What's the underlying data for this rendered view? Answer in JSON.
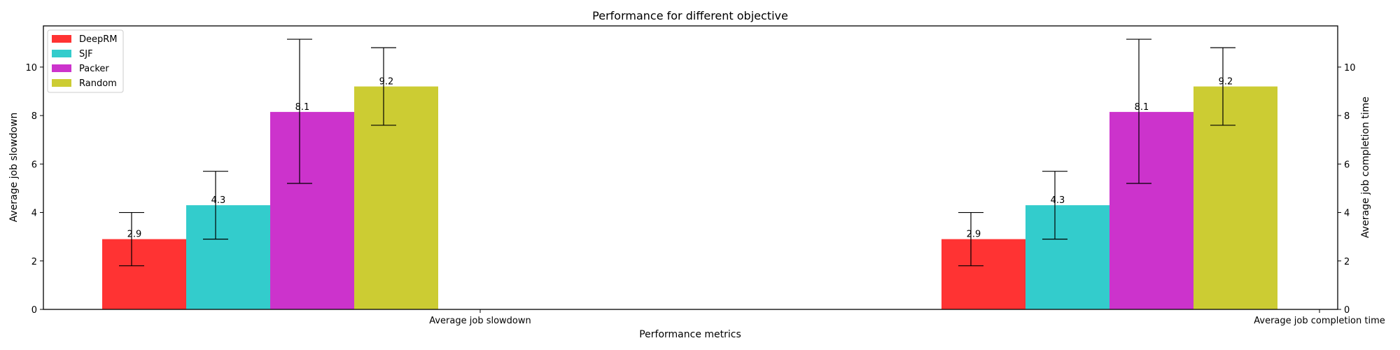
{
  "chart_data": {
    "type": "bar",
    "title": "Performance for different objective",
    "xlabel": "Performance metrics",
    "ylabel": "Average job slowdown",
    "ylabel_right": "Average job completion time",
    "ylim": [
      0,
      11.7
    ],
    "yticks": [
      0,
      2,
      4,
      6,
      8,
      10
    ],
    "legend_position": "top-left",
    "grid": false,
    "groups": [
      {
        "label": "Average job slowdown",
        "series": [
          {
            "name": "DeepRM",
            "value": 2.9,
            "label": "2.9",
            "err_low": 1.8,
            "err_high": 4.0,
            "color": "#ff3333"
          },
          {
            "name": "SJF",
            "value": 4.3,
            "label": "4.3",
            "err_low": 2.9,
            "err_high": 5.7,
            "color": "#33cccc"
          },
          {
            "name": "Packer",
            "value": 8.15,
            "label": "8.1",
            "err_low": 5.2,
            "err_high": 11.15,
            "color": "#cc33cc"
          },
          {
            "name": "Random",
            "value": 9.2,
            "label": "9.2",
            "err_low": 7.6,
            "err_high": 10.8,
            "color": "#cccc33"
          }
        ]
      },
      {
        "label": "Average job completion time",
        "series": [
          {
            "name": "DeepRM",
            "value": 2.9,
            "label": "2.9",
            "err_low": 1.8,
            "err_high": 4.0,
            "color": "#ff3333"
          },
          {
            "name": "SJF",
            "value": 4.3,
            "label": "4.3",
            "err_low": 2.9,
            "err_high": 5.7,
            "color": "#33cccc"
          },
          {
            "name": "Packer",
            "value": 8.15,
            "label": "8.1",
            "err_low": 5.2,
            "err_high": 11.15,
            "color": "#cc33cc"
          },
          {
            "name": "Random",
            "value": 9.2,
            "label": "9.2",
            "err_low": 7.6,
            "err_high": 10.8,
            "color": "#cccc33"
          }
        ]
      }
    ],
    "legend": [
      {
        "name": "DeepRM",
        "color": "#ff3333"
      },
      {
        "name": "SJF",
        "color": "#33cccc"
      },
      {
        "name": "Packer",
        "color": "#cc33cc"
      },
      {
        "name": "Random",
        "color": "#cccc33"
      }
    ]
  }
}
